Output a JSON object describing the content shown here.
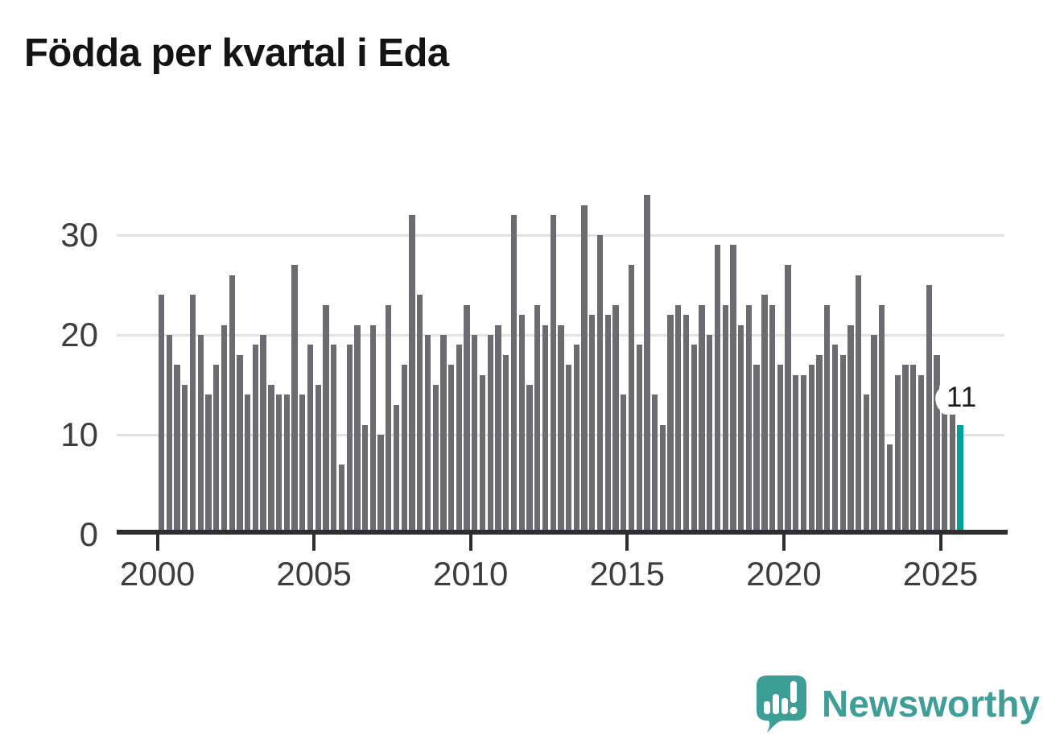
{
  "title": "Födda per kvartal i Eda",
  "chart_data": {
    "type": "bar",
    "title": "Födda per kvartal i Eda",
    "start_period": "2000 Q1",
    "end_period": "2025 Q3",
    "frequency": "quarterly",
    "values": [
      24,
      20,
      17,
      15,
      24,
      20,
      14,
      17,
      21,
      26,
      18,
      14,
      19,
      20,
      15,
      14,
      14,
      27,
      14,
      19,
      15,
      23,
      19,
      7,
      19,
      21,
      11,
      21,
      10,
      23,
      13,
      17,
      32,
      24,
      20,
      15,
      20,
      17,
      19,
      23,
      20,
      16,
      20,
      21,
      18,
      32,
      22,
      15,
      23,
      21,
      32,
      21,
      17,
      19,
      33,
      22,
      30,
      22,
      23,
      14,
      27,
      19,
      34,
      14,
      11,
      22,
      23,
      22,
      19,
      23,
      20,
      29,
      23,
      29,
      21,
      23,
      17,
      24,
      23,
      17,
      27,
      16,
      16,
      17,
      18,
      23,
      19,
      18,
      21,
      26,
      14,
      20,
      23,
      9,
      16,
      17,
      17,
      16,
      25,
      18,
      15,
      12,
      11
    ],
    "start_year": 2000,
    "highlight_last": true,
    "highlight_label": "11",
    "highlight_value": 11,
    "xticks": [
      "2000",
      "2005",
      "2010",
      "2015",
      "2020",
      "2025"
    ],
    "yticks": [
      0,
      10,
      20,
      30
    ],
    "ylim": [
      0,
      34
    ],
    "grid": "horizontal",
    "bar_color": "#6d6b72",
    "highlight_color": "#00a19a"
  },
  "logo": {
    "text": "Newsworthy"
  }
}
